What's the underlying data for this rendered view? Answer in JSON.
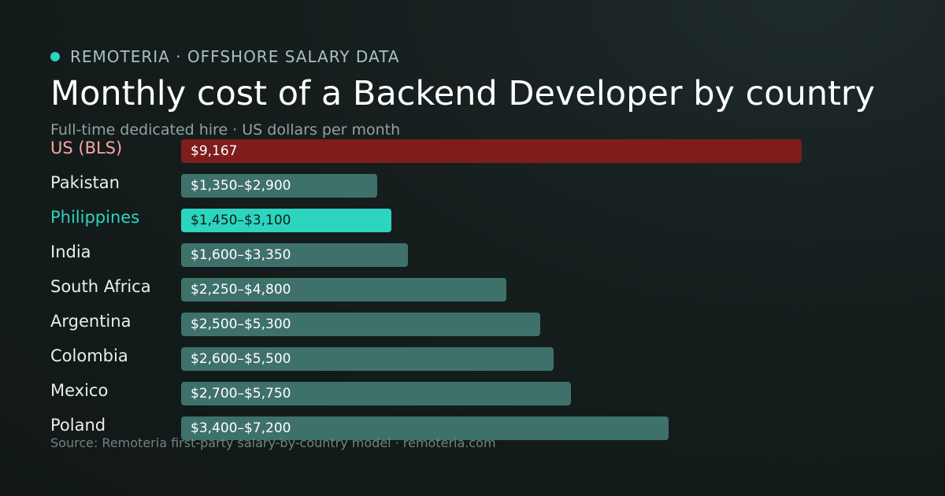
{
  "header": {
    "brand": "REMOTERIA · OFFSHORE SALARY DATA",
    "title": "Monthly cost of a Backend Developer by country",
    "subtitle": "Full-time dedicated hire · US dollars per month"
  },
  "footer": {
    "source": "Source: Remoteria first-party salary-by-country model · remoteria.com"
  },
  "colors": {
    "accent": "#2dd4bf",
    "us_bar": "#7f1d1d",
    "us_label": "#fca5a5",
    "default_bar": "#3f716b",
    "highlight_bar": "#2dd4bf",
    "highlight_label": "#2dd4bf",
    "default_label": "#e8efee"
  },
  "chart_data": {
    "type": "bar",
    "orientation": "horizontal",
    "grid": false,
    "xlim": [
      0,
      10000
    ],
    "categories": [
      "US (BLS)",
      "Pakistan",
      "Philippines",
      "India",
      "South Africa",
      "Argentina",
      "Colombia",
      "Mexico",
      "Poland"
    ],
    "bars": [
      {
        "category": "US (BLS)",
        "low": 9167,
        "high": 9167,
        "label": "$9,167",
        "style": "us"
      },
      {
        "category": "Pakistan",
        "low": 1350,
        "high": 2900,
        "label": "$1,350–$2,900",
        "style": "default"
      },
      {
        "category": "Philippines",
        "low": 1450,
        "high": 3100,
        "label": "$1,450–$3,100",
        "style": "highlight"
      },
      {
        "category": "India",
        "low": 1600,
        "high": 3350,
        "label": "$1,600–$3,350",
        "style": "default"
      },
      {
        "category": "South Africa",
        "low": 2250,
        "high": 4800,
        "label": "$2,250–$4,800",
        "style": "default"
      },
      {
        "category": "Argentina",
        "low": 2500,
        "high": 5300,
        "label": "$2,500–$5,300",
        "style": "default"
      },
      {
        "category": "Colombia",
        "low": 2600,
        "high": 5500,
        "label": "$2,600–$5,500",
        "style": "default"
      },
      {
        "category": "Mexico",
        "low": 2700,
        "high": 5750,
        "label": "$2,700–$5,750",
        "style": "default"
      },
      {
        "category": "Poland",
        "low": 3400,
        "high": 7200,
        "label": "$3,400–$7,200",
        "style": "default"
      }
    ]
  }
}
